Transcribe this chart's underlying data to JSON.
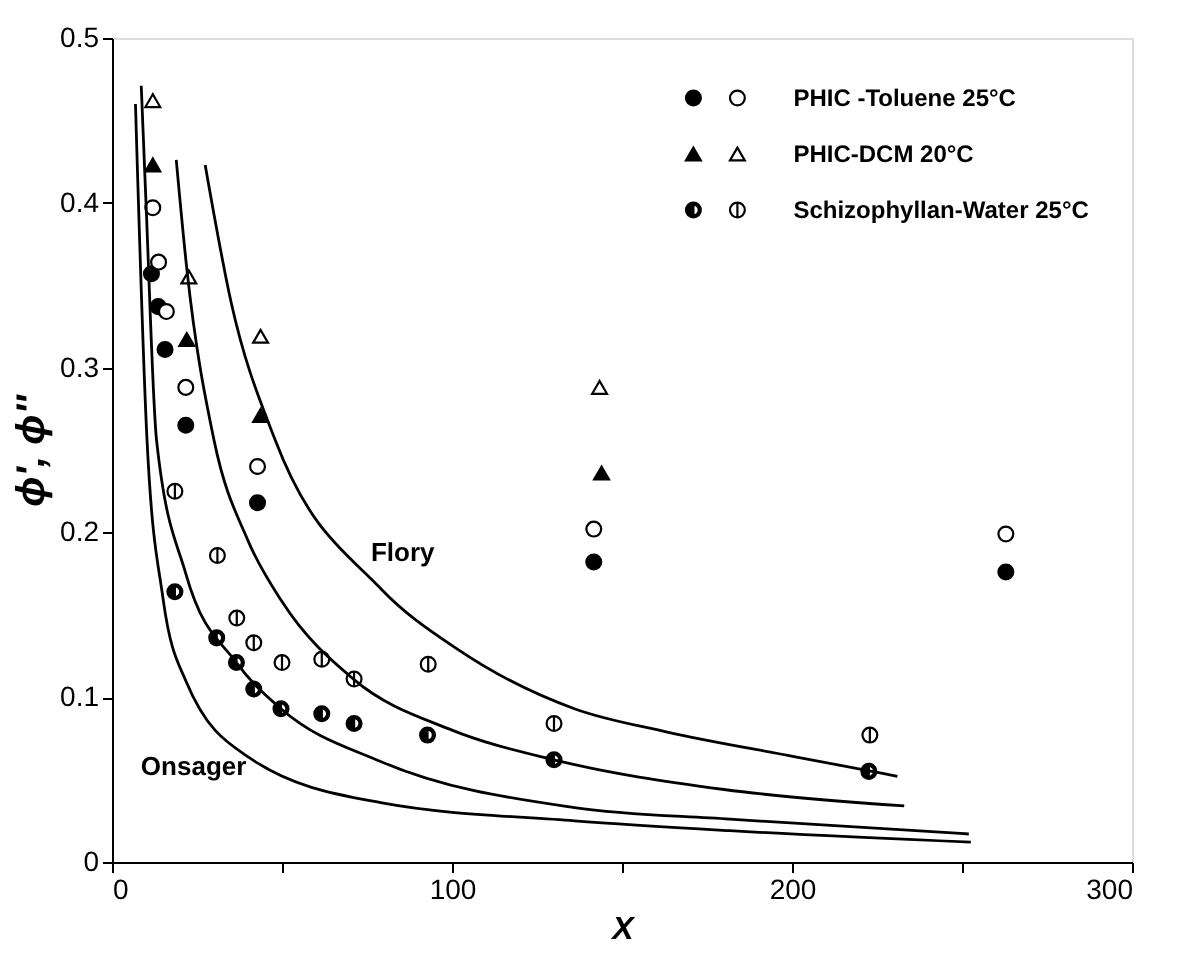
{
  "chart_data": {
    "type": "scatter",
    "xlabel": "X",
    "ylabel": "ϕ', ϕ''",
    "xlim": [
      0,
      300
    ],
    "ylim": [
      0,
      0.5
    ],
    "xticks": [
      0,
      {
        "value": 50,
        "label": null
      },
      100,
      {
        "value": 150,
        "label": null
      },
      200,
      {
        "value": 250,
        "label": null
      },
      300
    ],
    "yticks": [
      0,
      0.1,
      0.2,
      0.3,
      0.4,
      0.5
    ],
    "grid": false,
    "legend": "top right",
    "annotations": [
      "Flory",
      "Onsager"
    ],
    "series": [
      {
        "color": "#000000",
        "marker": "circle",
        "x": [
          11.6,
          13.6,
          15.6,
          21.7,
          42.8,
          141.7,
          262.9
        ],
        "values": [
          0.357,
          0.337,
          0.311,
          0.265,
          0.218,
          0.182,
          0.176
        ]
      },
      {
        "name": "PHIC -Toluene 25°C",
        "color": "#000000",
        "marker": "circle-open",
        "x": [
          12,
          13.7,
          16,
          21.7,
          42.8,
          141.7,
          262.9
        ],
        "values": [
          0.397,
          0.364,
          0.334,
          0.288,
          0.24,
          0.202,
          0.199
        ]
      },
      {
        "color": "#000000",
        "marker": "triangle",
        "x": [
          12,
          22,
          43.7,
          144
        ],
        "values": [
          0.423,
          0.317,
          0.271,
          0.236
        ]
      },
      {
        "name": "PHIC-DCM 20°C",
        "color": "#000000",
        "marker": "triangle-open",
        "x": [
          12,
          22.6,
          43.7,
          143.4
        ],
        "values": [
          0.462,
          0.355,
          0.319,
          0.288
        ]
      },
      {
        "color": "#000000",
        "marker": "circle-half",
        "x": [
          18.5,
          30.8,
          36.6,
          41.7,
          49.7,
          61.7,
          71.2,
          92.8,
          130,
          222.6
        ],
        "values": [
          0.164,
          0.136,
          0.121,
          0.105,
          0.093,
          0.09,
          0.084,
          0.077,
          0.062,
          0.055
        ]
      },
      {
        "name": "Schizophyllan-Water 25°C",
        "color": "#000000",
        "marker": "cross",
        "x": [
          18.5,
          31,
          36.7,
          41.7,
          50,
          61.7,
          71.2,
          93,
          130,
          222.9
        ],
        "values": [
          0.225,
          0.186,
          0.148,
          0.133,
          0.121,
          0.123,
          0.111,
          0.12,
          0.084,
          0.077
        ]
      },
      {
        "type": "line",
        "color": "#000000",
        "marker": "none",
        "x": [
          27.4,
          35,
          48,
          79,
          101.7,
          136,
          163,
          200.6,
          231
        ],
        "values": [
          0.423,
          0.34,
          0.256,
          0.166,
          0.129,
          0.093,
          0.079,
          0.064,
          0.052
        ]
      },
      {
        "type": "line",
        "color": "#000000",
        "marker": "none",
        "x": [
          18.9,
          22,
          30,
          40,
          50,
          71,
          100,
          130,
          180,
          233
        ],
        "values": [
          0.426,
          0.36,
          0.256,
          0.195,
          0.158,
          0.111,
          0.08,
          0.062,
          0.044,
          0.034
        ]
      },
      {
        "type": "line",
        "color": "#000000",
        "marker": "none",
        "x": [
          8.6,
          10,
          13.1,
          21.7,
          36.6,
          49.7,
          79,
          136,
          181.7,
          252
        ],
        "values": [
          0.471,
          0.4,
          0.256,
          0.175,
          0.121,
          0.093,
          0.061,
          0.033,
          0.026,
          0.017
        ]
      },
      {
        "type": "line",
        "color": "#000000",
        "marker": "none",
        "x": [
          6.9,
          10.3,
          15,
          21.7,
          40.6,
          79,
          136,
          181.7,
          252.6
        ],
        "values": [
          0.46,
          0.256,
          0.16,
          0.11,
          0.063,
          0.036,
          0.025,
          0.019,
          0.012
        ]
      }
    ]
  }
}
